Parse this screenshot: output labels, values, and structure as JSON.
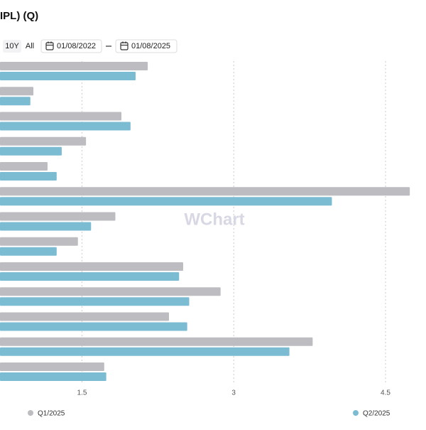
{
  "chart_data": {
    "type": "bar",
    "orientation": "horizontal",
    "title": "IPL) (Q)",
    "categories": [
      null,
      null,
      null,
      null,
      null,
      null,
      null,
      null,
      null,
      null,
      null,
      null,
      null
    ],
    "series": [
      {
        "name": "Q1/2025",
        "color": "#bdbcc1",
        "values": [
          2.15,
          1.02,
          1.89,
          1.54,
          1.16,
          4.74,
          1.83,
          1.46,
          2.5,
          2.87,
          2.36,
          3.78,
          1.72
        ]
      },
      {
        "name": "Q2/2025",
        "color": "#7bbcd3",
        "values": [
          2.03,
          0.99,
          1.98,
          1.3,
          1.25,
          3.97,
          1.59,
          1.25,
          2.46,
          2.56,
          2.54,
          3.55,
          1.74
        ]
      }
    ],
    "xlim": [
      0.69,
      4.9
    ],
    "xticks": [
      1.5,
      3,
      4.5
    ],
    "grid": true,
    "legend": "bottom"
  },
  "toolbar": {
    "ranges": [
      "10Y",
      "All"
    ],
    "start": "01/08/2022",
    "end": "01/08/2025"
  },
  "watermark": "WChart"
}
